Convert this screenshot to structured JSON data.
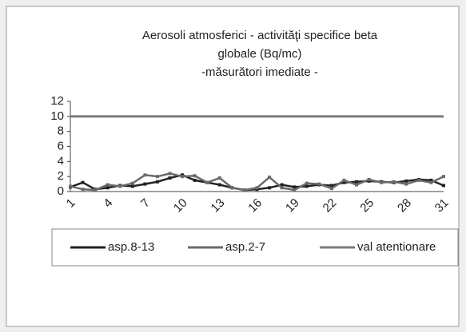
{
  "chart_data": {
    "type": "line",
    "title": "Aerosoli atmosferici  - activităţi specifice beta",
    "subtitle": "globale (Bq/mc)",
    "subtitle2": "-măsurători imediate -",
    "categories": [
      1,
      null,
      null,
      4,
      null,
      null,
      7,
      null,
      null,
      10,
      null,
      null,
      13,
      null,
      null,
      16,
      null,
      null,
      19,
      null,
      null,
      22,
      null,
      null,
      25,
      null,
      null,
      28,
      null,
      null,
      31
    ],
    "series": [
      {
        "name": "asp.8-13",
        "color": "#222222",
        "values": [
          0.6,
          1.2,
          0.3,
          0.5,
          0.8,
          0.7,
          1.0,
          1.3,
          1.8,
          2.2,
          1.5,
          1.2,
          0.9,
          0.5,
          0.2,
          0.3,
          0.5,
          0.9,
          0.6,
          0.7,
          0.9,
          0.8,
          1.2,
          1.3,
          1.4,
          1.3,
          1.2,
          1.4,
          1.6,
          1.5,
          0.8
        ]
      },
      {
        "name": "asp.2-7",
        "color": "#6a6a6a",
        "values": [
          0.7,
          0.3,
          0.2,
          0.9,
          0.7,
          1.1,
          2.2,
          2.0,
          2.4,
          2.0,
          2.1,
          1.2,
          1.8,
          0.5,
          0.2,
          0.5,
          1.9,
          0.5,
          0.2,
          1.1,
          1.0,
          0.4,
          1.5,
          0.9,
          1.6,
          1.2,
          1.3,
          1.0,
          1.5,
          1.2,
          2.0
        ]
      },
      {
        "name": "val atentionare",
        "color": "#7c7c7c",
        "values": [
          10,
          10,
          10,
          10,
          10,
          10,
          10,
          10,
          10,
          10,
          10,
          10,
          10,
          10,
          10,
          10,
          10,
          10,
          10,
          10,
          10,
          10,
          10,
          10,
          10,
          10,
          10,
          10,
          10,
          10,
          10
        ]
      }
    ],
    "ylim": [
      0,
      12
    ],
    "yticks": [
      0,
      2,
      4,
      6,
      8,
      10,
      12
    ],
    "grid": false
  }
}
